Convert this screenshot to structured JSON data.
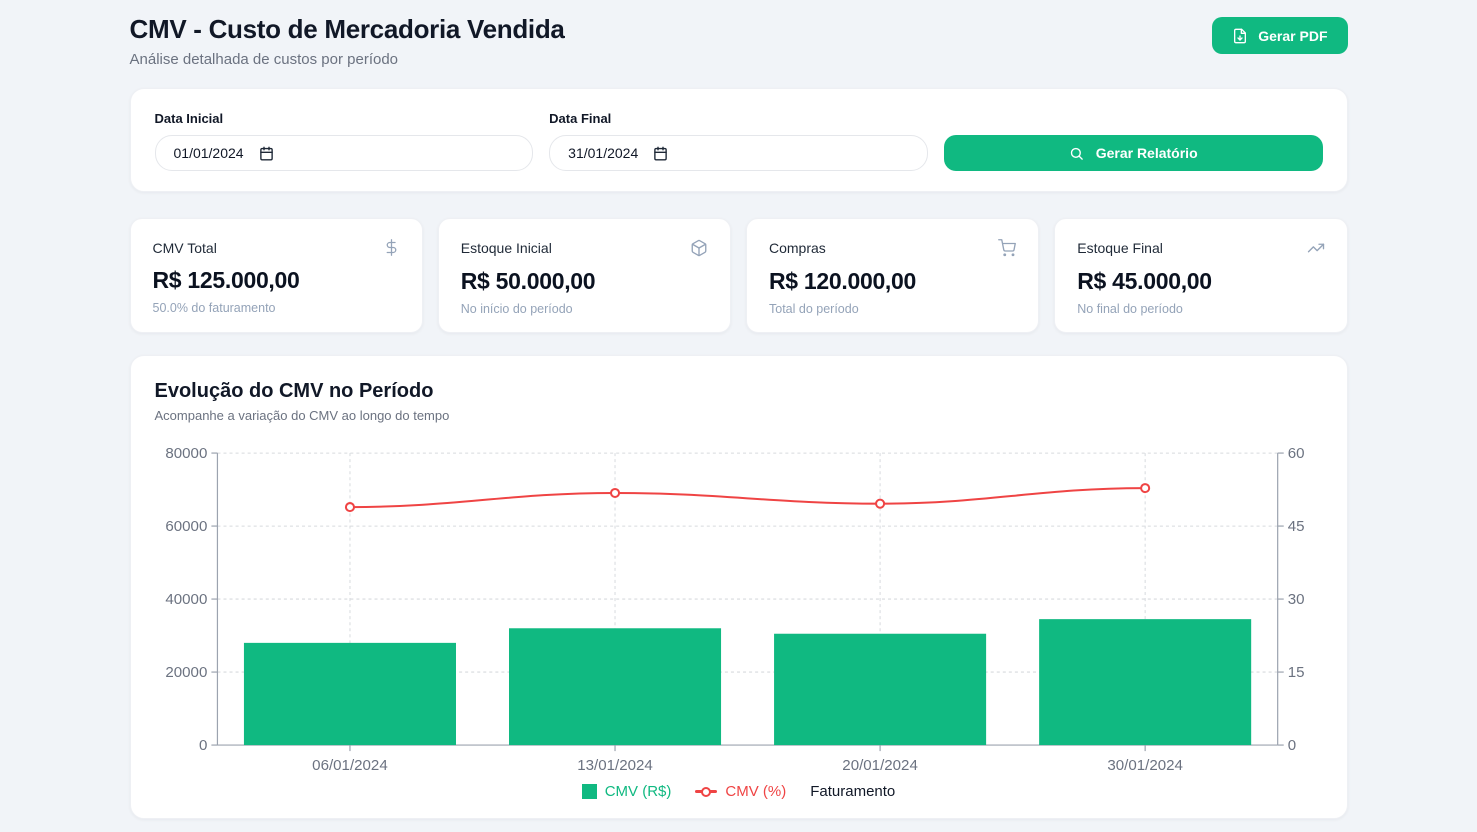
{
  "header": {
    "title": "CMV - Custo de Mercadoria Vendida",
    "subtitle": "Análise detalhada de custos por período",
    "generate_pdf": "Gerar PDF"
  },
  "filters": {
    "start_label": "Data Inicial",
    "start_value": "01/01/2024",
    "end_label": "Data Final",
    "end_value": "31/01/2024",
    "generate_report": "Gerar Relatório"
  },
  "stats": [
    {
      "label": "CMV Total",
      "value": "R$ 125.000,00",
      "sub": "50.0% do faturamento",
      "icon": "dollar-icon"
    },
    {
      "label": "Estoque Inicial",
      "value": "R$ 50.000,00",
      "sub": "No início do período",
      "icon": "package-icon"
    },
    {
      "label": "Compras",
      "value": "R$ 120.000,00",
      "sub": "Total do período",
      "icon": "cart-icon"
    },
    {
      "label": "Estoque Final",
      "value": "R$ 45.000,00",
      "sub": "No final do período",
      "icon": "trending-up-icon"
    }
  ],
  "chart": {
    "title": "Evolução do CMV no Período",
    "subtitle": "Acompanhe a variação do CMV ao longo do tempo"
  },
  "chart_data": {
    "type": "bar",
    "subtype": "combo-bar-line-dual-axis",
    "categories": [
      "06/01/2024",
      "13/01/2024",
      "20/01/2024",
      "30/01/2024"
    ],
    "series": [
      {
        "name": "CMV (R$)",
        "type": "bar",
        "axis": "left",
        "color": "#10b981",
        "values": [
          28000,
          32000,
          30500,
          34500
        ]
      },
      {
        "name": "CMV (%)",
        "type": "line",
        "axis": "right",
        "color": "#ef4444",
        "values": [
          48.9,
          51.8,
          49.6,
          52.8
        ]
      },
      {
        "name": "Faturamento",
        "type": "line",
        "axis": "left",
        "hidden": true,
        "values": []
      }
    ],
    "left_axis": {
      "min": 0,
      "max": 80000,
      "ticks": [
        0,
        20000,
        40000,
        60000,
        80000
      ]
    },
    "right_axis": {
      "min": 0,
      "max": 60,
      "ticks": [
        0,
        15,
        30,
        45,
        60
      ]
    },
    "grid": "dashed",
    "legend_position": "bottom",
    "bar_width_ratio": 0.8
  },
  "colors": {
    "accent_green": "#10b981",
    "line_red": "#ef4444",
    "axis_gray": "#9ca3af",
    "grid_gray": "#d7dade",
    "tick_text": "#6b7280"
  }
}
